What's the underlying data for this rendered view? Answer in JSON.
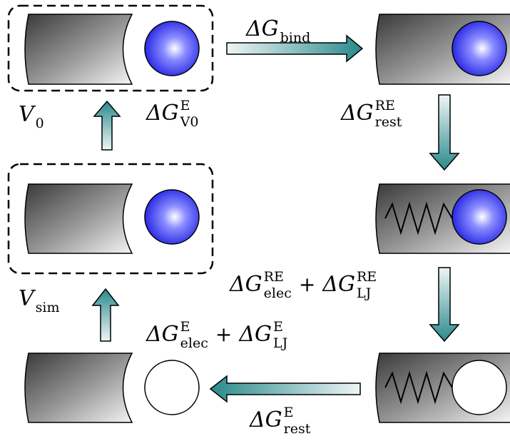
{
  "labels": {
    "v0": {
      "base": "V",
      "sub": "0"
    },
    "bind": {
      "base": "ΔG",
      "sub": "bind"
    },
    "e_v0": {
      "base": "ΔG",
      "sup": "E",
      "sub": "V0"
    },
    "re_rest": {
      "base": "ΔG",
      "sup": "RE",
      "sub": "rest"
    },
    "v_sim": {
      "base": "V",
      "sub": "sim"
    },
    "re_sum": {
      "terms": [
        {
          "base": "ΔG",
          "sup": "RE",
          "sub": "elec"
        },
        {
          "base": "ΔG",
          "sup": "RE",
          "sub": "LJ"
        }
      ],
      "operator": "+"
    },
    "e_sum": {
      "terms": [
        {
          "base": "ΔG",
          "sup": "E",
          "sub": "elec"
        },
        {
          "base": "ΔG",
          "sup": "E",
          "sub": "LJ"
        }
      ],
      "operator": "+"
    },
    "e_rest": {
      "base": "ΔG",
      "sup": "E",
      "sub": "rest"
    }
  }
}
